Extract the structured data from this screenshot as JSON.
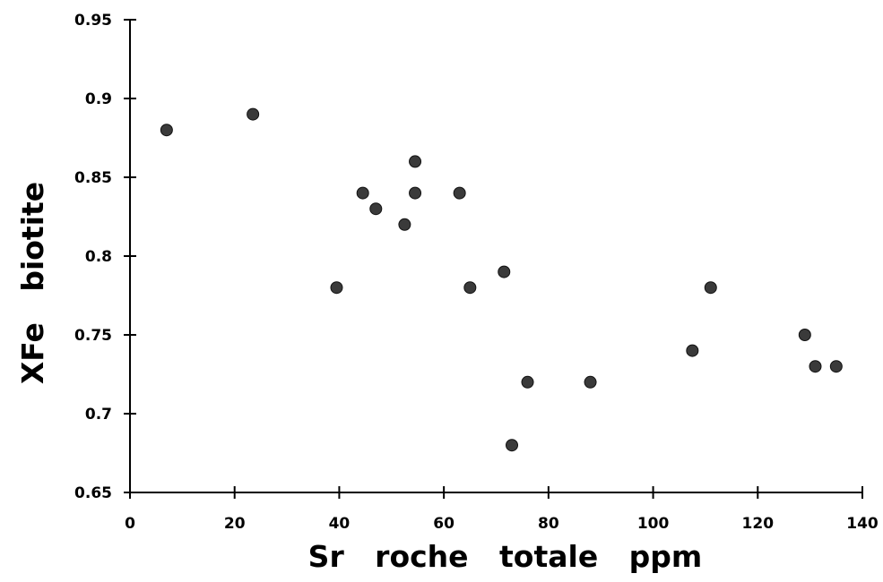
{
  "chart_data": {
    "type": "scatter",
    "title": "",
    "xlabel": "Sr   roche   totale   ppm",
    "ylabel": "XFe   biotite",
    "xlim": [
      0,
      140
    ],
    "ylim": [
      0.65,
      0.95
    ],
    "xticks": [
      0,
      20,
      40,
      60,
      80,
      100,
      120,
      140
    ],
    "yticks": [
      0.65,
      0.7,
      0.75,
      0.8,
      0.85,
      0.9,
      0.95
    ],
    "xtick_labels": [
      "0",
      "20",
      "40",
      "60",
      "80",
      "100",
      "120",
      "140"
    ],
    "ytick_labels": [
      "0.65",
      "0.7",
      "0.75",
      "0.8",
      "0.85",
      "0.9",
      "0.95"
    ],
    "grid": false,
    "legend": "none",
    "marker_color": "#3a3a3a",
    "points": [
      {
        "x": 7,
        "y": 0.88
      },
      {
        "x": 23.5,
        "y": 0.89
      },
      {
        "x": 39.5,
        "y": 0.78
      },
      {
        "x": 44.5,
        "y": 0.84
      },
      {
        "x": 47,
        "y": 0.83
      },
      {
        "x": 52.5,
        "y": 0.82
      },
      {
        "x": 54.5,
        "y": 0.86
      },
      {
        "x": 54.5,
        "y": 0.84
      },
      {
        "x": 63,
        "y": 0.84
      },
      {
        "x": 65,
        "y": 0.78
      },
      {
        "x": 71.5,
        "y": 0.79
      },
      {
        "x": 73,
        "y": 0.68
      },
      {
        "x": 76,
        "y": 0.72
      },
      {
        "x": 88,
        "y": 0.72
      },
      {
        "x": 107.5,
        "y": 0.74
      },
      {
        "x": 111,
        "y": 0.78
      },
      {
        "x": 129,
        "y": 0.75
      },
      {
        "x": 131,
        "y": 0.73
      },
      {
        "x": 135,
        "y": 0.73
      }
    ]
  }
}
